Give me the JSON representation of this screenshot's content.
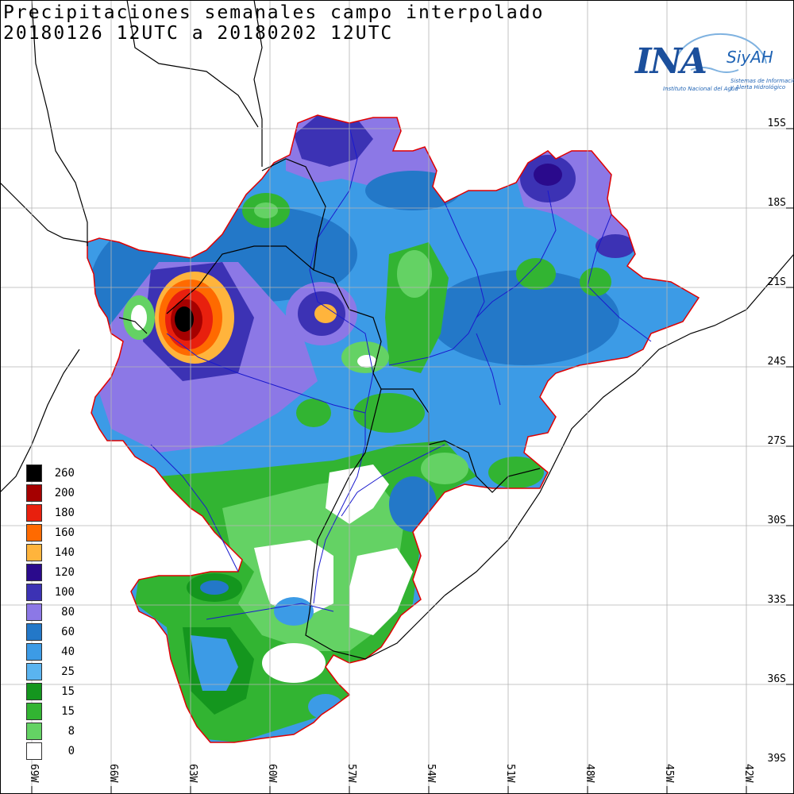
{
  "title": "Precipitaciones semanales campo interpolado",
  "subtitle": "20180126 12UTC a 20180202 12UTC",
  "latitude_labels": [
    "15S",
    "18S",
    "21S",
    "24S",
    "27S",
    "30S",
    "33S",
    "36S",
    "39S"
  ],
  "longitude_labels": [
    "69W",
    "66W",
    "63W",
    "60W",
    "57W",
    "54W",
    "51W",
    "48W",
    "45W",
    "42W"
  ],
  "legend": {
    "items": [
      {
        "label": "260",
        "color": "#000000"
      },
      {
        "label": "200",
        "color": "#a50000"
      },
      {
        "label": "180",
        "color": "#e8200e"
      },
      {
        "label": "160",
        "color": "#ff6a00"
      },
      {
        "label": "140",
        "color": "#ffb43c"
      },
      {
        "label": "120",
        "color": "#2a0a8c"
      },
      {
        "label": "100",
        "color": "#3c32b4"
      },
      {
        "label": "80",
        "color": "#8c78e6"
      },
      {
        "label": "60",
        "color": "#2378c8"
      },
      {
        "label": "40",
        "color": "#3c9be6"
      },
      {
        "label": "25",
        "color": "#5ab4f0"
      },
      {
        "label": "15",
        "color": "#14961e"
      },
      {
        "label": "15",
        "color": "#32b432"
      },
      {
        "label": "8",
        "color": "#64d264"
      },
      {
        "label": "0",
        "color": "#ffffff"
      }
    ]
  },
  "logo": {
    "name": "INA",
    "system": "SiyAH",
    "institution": "Instituto Nacional del Agua",
    "system_line1": "Sistemas de Información",
    "system_line2": "y Alerta Hidrológico"
  }
}
